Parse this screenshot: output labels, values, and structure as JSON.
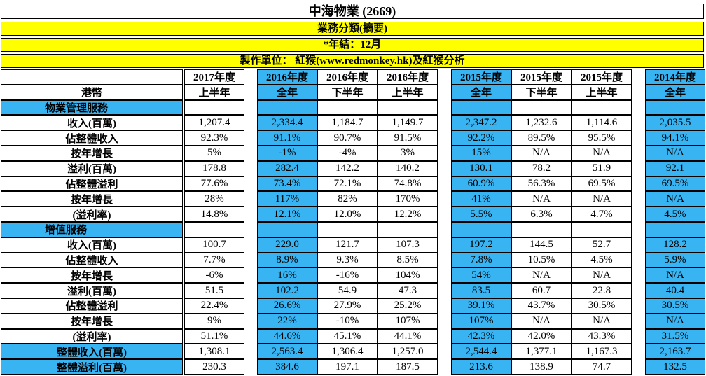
{
  "title": "中海物業 (2669)",
  "subtitle": "業務分類(摘要)",
  "year_end": "*年結：12月",
  "credit": "製作單位： 紅猴(www.redmonkey.hk)及紅猴分析",
  "currency_label": "港幣",
  "col_years": [
    "2017年度",
    "2016年度",
    "2016年度",
    "2016年度",
    "2015年度",
    "2015年度",
    "2015年度",
    "2014年度"
  ],
  "col_periods": [
    "上半年",
    "全年",
    "下半年",
    "上半年",
    "全年",
    "下半年",
    "上半年",
    "全年"
  ],
  "sections": [
    {
      "name": "物業管理服務",
      "rows": [
        {
          "label": "收入(百萬)",
          "values": [
            "1,207.4",
            "2,334.4",
            "1,184.7",
            "1,149.7",
            "2,347.2",
            "1,232.6",
            "1,114.6",
            "2,035.5"
          ]
        },
        {
          "label": "佔整體收入",
          "values": [
            "92.3%",
            "91.1%",
            "90.7%",
            "91.5%",
            "92.2%",
            "89.5%",
            "95.5%",
            "94.1%"
          ]
        },
        {
          "label": "按年增長",
          "values": [
            "5%",
            "-1%",
            "-4%",
            "3%",
            "15%",
            "N/A",
            "N/A",
            "N/A"
          ]
        },
        {
          "label": "溢利(百萬)",
          "values": [
            "178.8",
            "282.4",
            "142.2",
            "140.2",
            "130.1",
            "78.2",
            "51.9",
            "92.1"
          ]
        },
        {
          "label": "佔整體溢利",
          "values": [
            "77.6%",
            "73.4%",
            "72.1%",
            "74.8%",
            "60.9%",
            "56.3%",
            "69.5%",
            "69.5%"
          ]
        },
        {
          "label": "按年增長",
          "values": [
            "28%",
            "117%",
            "82%",
            "170%",
            "41%",
            "N/A",
            "N/A",
            "N/A"
          ]
        },
        {
          "label": "(溢利率)",
          "values": [
            "14.8%",
            "12.1%",
            "12.0%",
            "12.2%",
            "5.5%",
            "6.3%",
            "4.7%",
            "4.5%"
          ]
        }
      ]
    },
    {
      "name": "增值服務",
      "rows": [
        {
          "label": "收入(百萬)",
          "values": [
            "100.7",
            "229.0",
            "121.7",
            "107.3",
            "197.2",
            "144.5",
            "52.7",
            "128.2"
          ]
        },
        {
          "label": "佔整體收入",
          "values": [
            "7.7%",
            "8.9%",
            "9.3%",
            "8.5%",
            "7.8%",
            "10.5%",
            "4.5%",
            "5.9%"
          ]
        },
        {
          "label": "按年增長",
          "values": [
            "-6%",
            "16%",
            "-16%",
            "104%",
            "54%",
            "N/A",
            "N/A",
            "N/A"
          ]
        },
        {
          "label": "溢利(百萬)",
          "values": [
            "51.5",
            "102.2",
            "54.9",
            "47.3",
            "83.5",
            "60.7",
            "22.8",
            "40.4"
          ]
        },
        {
          "label": "佔整體溢利",
          "values": [
            "22.4%",
            "26.6%",
            "27.9%",
            "25.2%",
            "39.1%",
            "43.7%",
            "30.5%",
            "30.5%"
          ]
        },
        {
          "label": "按年增長",
          "values": [
            "9%",
            "22%",
            "-10%",
            "107%",
            "107%",
            "N/A",
            "N/A",
            "N/A"
          ]
        },
        {
          "label": "(溢利率)",
          "values": [
            "51.1%",
            "44.6%",
            "45.1%",
            "44.1%",
            "42.3%",
            "42.0%",
            "43.3%",
            "31.5%"
          ]
        }
      ]
    }
  ],
  "totals": [
    {
      "label": "整體收入(百萬)",
      "values": [
        "1,308.1",
        "2,563.4",
        "1,306.4",
        "1,257.0",
        "2,544.4",
        "1,377.1",
        "1,167.3",
        "2,163.7"
      ]
    },
    {
      "label": "整體溢利(百萬)",
      "values": [
        "230.3",
        "384.6",
        "197.1",
        "187.5",
        "213.6",
        "138.9",
        "74.7",
        "132.5"
      ]
    }
  ],
  "colors": {
    "banner_yellow": "#ffff00",
    "highlight_blue": "#39b4f3",
    "cell_border": "#000000"
  }
}
